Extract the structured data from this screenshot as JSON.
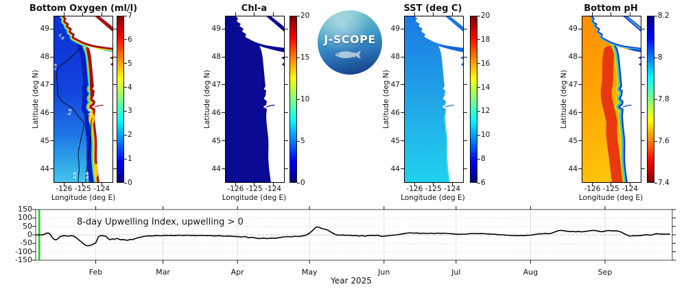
{
  "figure": {
    "background": "#ffffff"
  },
  "logo": {
    "text": "J-SCOPE"
  },
  "chart_data": [
    {
      "type": "heatmap",
      "title": "Bottom Oxygen (ml/l)",
      "xlabel": "Longitude (deg E)",
      "ylabel": "Latitude (deg N)",
      "x_ticks": [
        -126,
        -125,
        -124
      ],
      "y_ticks": [
        49,
        48,
        47,
        46,
        45,
        44
      ],
      "colorbar": {
        "min": 0,
        "max": 7,
        "ticks": [
          7,
          6,
          5,
          4,
          3,
          2,
          1,
          0
        ],
        "colormap": "jet",
        "reversed": false
      },
      "contour_label": "1.5",
      "description": "Low oxygen (blue, <1.5) offshore with black 1.5 contour; high oxygen (dark red) band along the coast and straits"
    },
    {
      "type": "heatmap",
      "title": "Chl-a",
      "xlabel": "Longitude (deg E)",
      "ylabel": "Latitude (deg N)",
      "x_ticks": [
        -126,
        -125,
        -124
      ],
      "y_ticks": [
        49,
        48,
        47,
        46,
        45,
        44
      ],
      "colorbar": {
        "min": 0,
        "max": 20,
        "ticks": [
          20,
          15,
          10,
          5,
          0
        ],
        "colormap": "jet",
        "reversed": false
      },
      "description": "Uniform near-zero chlorophyll (dark navy) over the whole domain"
    },
    {
      "type": "heatmap",
      "title": "SST (deg C)",
      "xlabel": "Longitude (deg E)",
      "ylabel": "Latitude (deg N)",
      "x_ticks": [
        -126,
        -125,
        -124
      ],
      "y_ticks": [
        49,
        48,
        47,
        46,
        45,
        44
      ],
      "colorbar": {
        "min": 6,
        "max": 20,
        "ticks": [
          20,
          18,
          16,
          14,
          12,
          10,
          8,
          6
        ],
        "colormap": "jet",
        "reversed": false
      },
      "description": "SST ~9 C (blue) in the north grading to ~11 C (cyan) in the south"
    },
    {
      "type": "heatmap",
      "title": "Bottom pH",
      "xlabel": "Longitude (deg E)",
      "ylabel": "Latitude (deg N)",
      "x_ticks": [
        -126,
        -125,
        -124
      ],
      "y_ticks": [
        49,
        48,
        47,
        46,
        45,
        44
      ],
      "colorbar": {
        "min": 7.4,
        "max": 8.2,
        "ticks": [
          8.2,
          8,
          7.8,
          7.6,
          7.4
        ],
        "colormap": "jet",
        "reversed": true
      },
      "description": "Low pH (orange/red ~7.5-7.6) offshore, higher pH (cyan/blue ~7.9-8.2) band along the coast"
    },
    {
      "type": "line",
      "annotation": "8-day Upwelling Index, upwelling > 0",
      "xlabel": "Year 2025",
      "x_domain_days": [
        7,
        272
      ],
      "x_ticks": [
        {
          "label": "Feb",
          "day": 32
        },
        {
          "label": "Mar",
          "day": 60
        },
        {
          "label": "Apr",
          "day": 91
        },
        {
          "label": "May",
          "day": 121
        },
        {
          "label": "Jun",
          "day": 152
        },
        {
          "label": "Jul",
          "day": 182
        },
        {
          "label": "Aug",
          "day": 213
        },
        {
          "label": "Sep",
          "day": 244
        }
      ],
      "ylim": [
        -150,
        150
      ],
      "y_ticks": [
        150,
        100,
        50,
        0,
        -50,
        -100,
        -150
      ],
      "line_color": "#000000",
      "zero_line": "dotted",
      "marker_line": {
        "color": "#00e400",
        "day": 8.5
      },
      "points": [
        [
          6.9,
          0
        ],
        [
          8,
          0
        ],
        [
          9.1,
          0
        ],
        [
          10,
          1
        ],
        [
          10.9,
          5
        ],
        [
          11.4,
          10
        ],
        [
          12.3,
          11
        ],
        [
          12.9,
          6
        ],
        [
          13.7,
          -12
        ],
        [
          14.6,
          -26
        ],
        [
          15.4,
          -30
        ],
        [
          16.3,
          -22
        ],
        [
          17.1,
          -11
        ],
        [
          18,
          -7
        ],
        [
          18.9,
          -5
        ],
        [
          19.7,
          -6
        ],
        [
          20.6,
          -8
        ],
        [
          21.4,
          -6
        ],
        [
          22.3,
          -5
        ],
        [
          23.1,
          -10
        ],
        [
          23.7,
          -15
        ],
        [
          24.6,
          -25
        ],
        [
          25.4,
          -35
        ],
        [
          26.3,
          -45
        ],
        [
          27.1,
          -55
        ],
        [
          28,
          -63
        ],
        [
          28.9,
          -65
        ],
        [
          29.7,
          -62
        ],
        [
          30.6,
          -58
        ],
        [
          31.4,
          -52
        ],
        [
          32,
          -48
        ],
        [
          32.6,
          -30
        ],
        [
          33.1,
          -12
        ],
        [
          33.7,
          -6
        ],
        [
          34.6,
          -5
        ],
        [
          35.4,
          -6
        ],
        [
          36.3,
          -9
        ],
        [
          37.1,
          -22
        ],
        [
          38,
          -29
        ],
        [
          38.9,
          -23
        ],
        [
          39.7,
          -27
        ],
        [
          40.6,
          -21
        ],
        [
          41.4,
          -24
        ],
        [
          42.3,
          -29
        ],
        [
          43.1,
          -28
        ],
        [
          44,
          -29
        ],
        [
          44.9,
          -32
        ],
        [
          45.7,
          -30
        ],
        [
          46.6,
          -27
        ],
        [
          47.4,
          -28
        ],
        [
          48.3,
          -23
        ],
        [
          49.1,
          -19
        ],
        [
          50,
          -16
        ],
        [
          50.9,
          -13
        ],
        [
          51.7,
          -10
        ],
        [
          52.6,
          -8
        ],
        [
          53.4,
          -7
        ],
        [
          54.3,
          -6
        ],
        [
          55.4,
          -7
        ],
        [
          56.6,
          -5
        ],
        [
          57.7,
          -4
        ],
        [
          58.9,
          -6
        ],
        [
          60,
          -4
        ],
        [
          61.1,
          -3
        ],
        [
          62.3,
          -4
        ],
        [
          63.4,
          -3
        ],
        [
          64.6,
          -5
        ],
        [
          65.7,
          -3
        ],
        [
          66.9,
          -2
        ],
        [
          68,
          -4
        ],
        [
          69.1,
          -3
        ],
        [
          70.3,
          -2
        ],
        [
          71.4,
          -4
        ],
        [
          72.6,
          -3
        ],
        [
          73.7,
          -5
        ],
        [
          74.9,
          -4
        ],
        [
          76,
          -3
        ],
        [
          77.1,
          -4
        ],
        [
          78.3,
          -5
        ],
        [
          79.7,
          -4
        ],
        [
          81.4,
          -7
        ],
        [
          83.4,
          -5
        ],
        [
          85.4,
          -8
        ],
        [
          87.1,
          -7
        ],
        [
          89.1,
          -9
        ],
        [
          91.1,
          -11
        ],
        [
          92.9,
          -12
        ],
        [
          94.3,
          -10
        ],
        [
          95.7,
          -17
        ],
        [
          97.1,
          -14
        ],
        [
          98.6,
          -19
        ],
        [
          100,
          -22
        ],
        [
          101.7,
          -19
        ],
        [
          103.4,
          -22
        ],
        [
          105.1,
          -19
        ],
        [
          106.9,
          -20
        ],
        [
          108.6,
          -16
        ],
        [
          110.3,
          -12
        ],
        [
          112,
          -10
        ],
        [
          113.4,
          -12
        ],
        [
          114.9,
          -8
        ],
        [
          116.3,
          -10
        ],
        [
          117.7,
          -7
        ],
        [
          119.1,
          -4
        ],
        [
          120.6,
          6
        ],
        [
          122,
          22
        ],
        [
          123.1,
          38
        ],
        [
          124,
          47
        ],
        [
          125.1,
          44
        ],
        [
          126.3,
          37
        ],
        [
          127.4,
          34
        ],
        [
          128.6,
          28
        ],
        [
          129.7,
          18
        ],
        [
          130.9,
          8
        ],
        [
          132,
          1
        ],
        [
          133.1,
          -2
        ],
        [
          134.6,
          -1
        ],
        [
          136,
          -3
        ],
        [
          137.4,
          -2
        ],
        [
          138.9,
          -5
        ],
        [
          140.3,
          -4
        ],
        [
          141.7,
          -7
        ],
        [
          142.9,
          -4
        ],
        [
          144,
          -8
        ],
        [
          145.1,
          -5
        ],
        [
          146.6,
          -3
        ],
        [
          148,
          -5
        ],
        [
          149.1,
          -2
        ],
        [
          150.3,
          -7
        ],
        [
          151.4,
          -9
        ],
        [
          152.9,
          -7
        ],
        [
          154.3,
          -4
        ],
        [
          155.7,
          -2
        ],
        [
          157.1,
          0
        ],
        [
          158.6,
          3
        ],
        [
          160,
          7
        ],
        [
          161.4,
          10
        ],
        [
          162.9,
          12
        ],
        [
          164.3,
          10
        ],
        [
          165.7,
          11
        ],
        [
          167.1,
          9
        ],
        [
          168.6,
          10
        ],
        [
          170,
          8
        ],
        [
          171.4,
          10
        ],
        [
          172.9,
          8
        ],
        [
          174.3,
          10
        ],
        [
          175.7,
          9
        ],
        [
          177.1,
          10
        ],
        [
          178.6,
          8
        ],
        [
          180,
          7
        ],
        [
          181.4,
          5
        ],
        [
          182.9,
          3
        ],
        [
          184.3,
          4
        ],
        [
          185.7,
          4
        ],
        [
          187.1,
          6
        ],
        [
          188.6,
          8
        ],
        [
          190,
          8
        ],
        [
          191.4,
          7
        ],
        [
          192.9,
          8
        ],
        [
          194.3,
          6
        ],
        [
          195.7,
          5
        ],
        [
          197.1,
          4
        ],
        [
          198.6,
          3
        ],
        [
          200,
          1
        ],
        [
          201.4,
          0
        ],
        [
          202.9,
          -2
        ],
        [
          204.3,
          -3
        ],
        [
          205.7,
          -4
        ],
        [
          207.1,
          -5
        ],
        [
          208.6,
          -4
        ],
        [
          210,
          -5
        ],
        [
          211.4,
          -3
        ],
        [
          212.9,
          -2
        ],
        [
          214.3,
          1
        ],
        [
          215.7,
          4
        ],
        [
          216.9,
          7
        ],
        [
          218,
          6
        ],
        [
          219.1,
          9
        ],
        [
          220.3,
          7
        ],
        [
          221.4,
          8
        ],
        [
          222.6,
          14
        ],
        [
          223.7,
          21
        ],
        [
          224.9,
          26
        ],
        [
          226,
          26
        ],
        [
          227.1,
          24
        ],
        [
          228.3,
          21
        ],
        [
          229.4,
          19
        ],
        [
          230.6,
          20
        ],
        [
          231.7,
          18
        ],
        [
          232.9,
          20
        ],
        [
          234,
          18
        ],
        [
          235.1,
          19
        ],
        [
          236.3,
          21
        ],
        [
          237.4,
          24
        ],
        [
          238.6,
          26
        ],
        [
          239.7,
          26
        ],
        [
          240.9,
          23
        ],
        [
          242,
          19
        ],
        [
          243.1,
          19
        ],
        [
          244.3,
          23
        ],
        [
          245.4,
          26
        ],
        [
          246.6,
          24
        ],
        [
          247.7,
          23
        ],
        [
          248.9,
          24
        ],
        [
          250,
          20
        ],
        [
          250.9,
          15
        ],
        [
          251.7,
          9
        ],
        [
          252.6,
          3
        ],
        [
          253.4,
          -3
        ],
        [
          254.3,
          -7
        ],
        [
          255.1,
          -6
        ],
        [
          256,
          -5
        ],
        [
          256.9,
          -6
        ],
        [
          257.7,
          -4
        ],
        [
          258.6,
          -5
        ],
        [
          259.4,
          -3
        ],
        [
          260.3,
          -1
        ],
        [
          261.1,
          1
        ],
        [
          262,
          0
        ],
        [
          262.9,
          -2
        ],
        [
          263.7,
          0
        ],
        [
          264.6,
          4
        ],
        [
          265.4,
          7
        ],
        [
          266.3,
          6
        ],
        [
          267.1,
          5
        ],
        [
          268,
          5
        ],
        [
          269.1,
          4
        ],
        [
          270.3,
          5
        ],
        [
          271.1,
          5
        ]
      ]
    }
  ]
}
